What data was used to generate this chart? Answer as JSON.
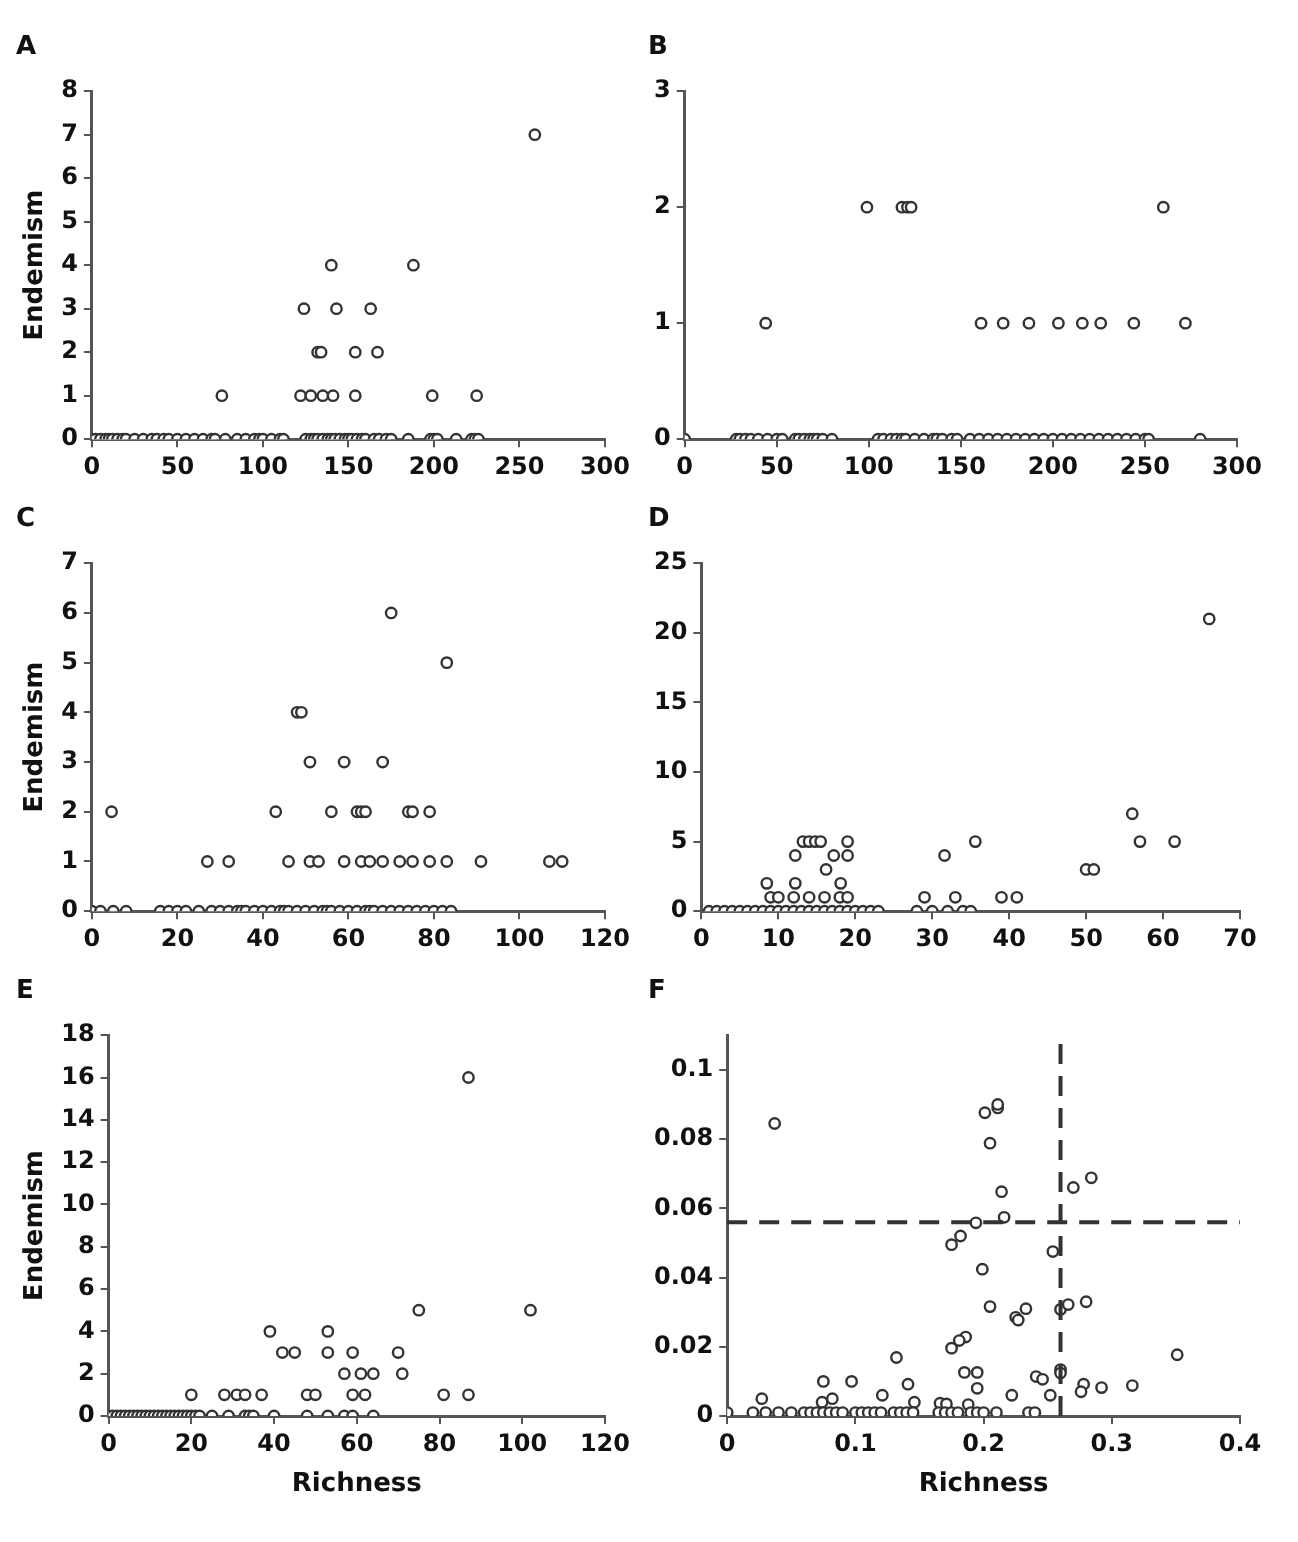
{
  "chart_data": [
    {
      "type": "scatter",
      "title": "A",
      "ylabel": "Endemism",
      "color": "#333333",
      "marker": "circle",
      "xlim": [
        0,
        300
      ],
      "xticks": [
        0,
        50,
        100,
        150,
        200,
        250,
        300
      ],
      "ylim": [
        0,
        8
      ],
      "yticks": [
        0,
        1,
        2,
        3,
        4,
        5,
        6,
        7,
        8
      ],
      "x": [
        76,
        122,
        128,
        135,
        141,
        154,
        199,
        225,
        132,
        134,
        154,
        167,
        124,
        143,
        163,
        140,
        188,
        259,
        0,
        2,
        5,
        8,
        10,
        12,
        15,
        18,
        20,
        25,
        30,
        35,
        38,
        42,
        45,
        50,
        55,
        60,
        65,
        70,
        72,
        78,
        85,
        90,
        95,
        98,
        100,
        105,
        110,
        112,
        125,
        128,
        130,
        132,
        135,
        138,
        140,
        142,
        145,
        148,
        150,
        152,
        155,
        158,
        160,
        165,
        168,
        172,
        175,
        185,
        198,
        200,
        202,
        213,
        222,
        224,
        226
      ],
      "values": [
        1,
        1,
        1,
        1,
        1,
        1,
        1,
        1,
        2,
        2,
        2,
        2,
        3,
        3,
        3,
        4,
        4,
        7,
        0,
        0,
        0,
        0,
        0,
        0,
        0,
        0,
        0,
        0,
        0,
        0,
        0,
        0,
        0,
        0,
        0,
        0,
        0,
        0,
        0,
        0,
        0,
        0,
        0,
        0,
        0,
        0,
        0,
        0,
        0,
        0,
        0,
        0,
        0,
        0,
        0,
        0,
        0,
        0,
        0,
        0,
        0,
        0,
        0,
        0,
        0,
        0,
        0,
        0,
        0,
        0,
        0,
        0,
        0,
        0,
        0
      ]
    },
    {
      "type": "scatter",
      "title": "B",
      "color": "#333333",
      "marker": "circle",
      "xlim": [
        0,
        300
      ],
      "xticks": [
        0,
        50,
        100,
        150,
        200,
        250,
        300
      ],
      "ylim": [
        0,
        3
      ],
      "yticks": [
        0,
        1,
        2,
        3
      ],
      "x": [
        44,
        161,
        173,
        187,
        203,
        216,
        226,
        244,
        272,
        99,
        118,
        121,
        123,
        260,
        0,
        28,
        30,
        33,
        36,
        40,
        45,
        50,
        53,
        60,
        62,
        65,
        68,
        70,
        72,
        75,
        80,
        105,
        108,
        112,
        115,
        118,
        120,
        125,
        130,
        135,
        137,
        140,
        145,
        148,
        155,
        160,
        165,
        170,
        175,
        180,
        185,
        190,
        195,
        200,
        205,
        210,
        215,
        220,
        225,
        230,
        235,
        240,
        245,
        250,
        252,
        280
      ],
      "values": [
        1,
        1,
        1,
        1,
        1,
        1,
        1,
        1,
        1,
        2,
        2,
        2,
        2,
        2,
        0,
        0,
        0,
        0,
        0,
        0,
        0,
        0,
        0,
        0,
        0,
        0,
        0,
        0,
        0,
        0,
        0,
        0,
        0,
        0,
        0,
        0,
        0,
        0,
        0,
        0,
        0,
        0,
        0,
        0,
        0,
        0,
        0,
        0,
        0,
        0,
        0,
        0,
        0,
        0,
        0,
        0,
        0,
        0,
        0,
        0,
        0,
        0,
        0,
        0,
        0,
        0
      ]
    },
    {
      "type": "scatter",
      "title": "C",
      "ylabel": "Endemism",
      "color": "#333333",
      "marker": "circle",
      "xlim": [
        0,
        120
      ],
      "xticks": [
        0,
        20,
        40,
        60,
        80,
        100,
        120
      ],
      "ylim": [
        0,
        7
      ],
      "yticks": [
        0,
        1,
        2,
        3,
        4,
        5,
        6,
        7
      ],
      "x": [
        4.6,
        43,
        56,
        62,
        63,
        64,
        74,
        75,
        79,
        51,
        59,
        68,
        48,
        49,
        83,
        70,
        27,
        32,
        46,
        51,
        53,
        59,
        63,
        65,
        68,
        72,
        75,
        79,
        83,
        91,
        107,
        110,
        0,
        2,
        5,
        8,
        16,
        18,
        20,
        22,
        25,
        28,
        30,
        32,
        34,
        35,
        36,
        38,
        40,
        42,
        44,
        45,
        46,
        48,
        50,
        52,
        54,
        55,
        56,
        58,
        60,
        62,
        64,
        65,
        66,
        68,
        70,
        72,
        74,
        76,
        78,
        80,
        82,
        84
      ],
      "values": [
        2,
        2,
        2,
        2,
        2,
        2,
        2,
        2,
        2,
        3,
        3,
        3,
        4,
        4,
        5,
        6,
        1,
        1,
        1,
        1,
        1,
        1,
        1,
        1,
        1,
        1,
        1,
        1,
        1,
        1,
        1,
        1,
        0,
        0,
        0,
        0,
        0,
        0,
        0,
        0,
        0,
        0,
        0,
        0,
        0,
        0,
        0,
        0,
        0,
        0,
        0,
        0,
        0,
        0,
        0,
        0,
        0,
        0,
        0,
        0,
        0,
        0,
        0,
        0,
        0,
        0,
        0,
        0,
        0,
        0,
        0,
        0,
        0,
        0
      ]
    },
    {
      "type": "scatter",
      "title": "D",
      "color": "#333333",
      "marker": "circle",
      "xlim": [
        0,
        70
      ],
      "xticks": [
        0,
        10,
        20,
        30,
        40,
        50,
        60,
        70
      ],
      "ylim": [
        0,
        25
      ],
      "yticks": [
        0,
        5,
        10,
        15,
        20,
        25
      ],
      "x": [
        66,
        56,
        57,
        61.5,
        35.6,
        13.2,
        14,
        14.8,
        15.5,
        19,
        12.2,
        17.2,
        19,
        31.6,
        16.2,
        50,
        51,
        8.5,
        12.2,
        18.1,
        9,
        10,
        12,
        14,
        16,
        18,
        19,
        29,
        33,
        39,
        41,
        1,
        2,
        3,
        4,
        5,
        6,
        7,
        8,
        9,
        10,
        11,
        12,
        13,
        14,
        15,
        16,
        17,
        18,
        19,
        20,
        21,
        22,
        23,
        28,
        30,
        32,
        34,
        35
      ],
      "values": [
        21,
        7,
        5,
        5,
        5,
        5,
        5,
        5,
        5,
        5,
        4,
        4,
        4,
        4,
        3,
        3,
        3,
        2,
        2,
        2,
        1,
        1,
        1,
        1,
        1,
        1,
        1,
        1,
        1,
        1,
        1,
        0,
        0,
        0,
        0,
        0,
        0,
        0,
        0,
        0,
        0,
        0,
        0,
        0,
        0,
        0,
        0,
        0,
        0,
        0,
        0,
        0,
        0,
        0,
        0,
        0,
        0,
        0,
        0
      ]
    },
    {
      "type": "scatter",
      "title": "E",
      "xlabel": "Richness",
      "ylabel": "Endemism",
      "color": "#333333",
      "marker": "circle",
      "xlim": [
        0,
        120
      ],
      "xticks": [
        0,
        20,
        40,
        60,
        80,
        100,
        120
      ],
      "ylim": [
        0,
        18
      ],
      "yticks": [
        0,
        2,
        4,
        6,
        8,
        10,
        12,
        14,
        16,
        18
      ],
      "x": [
        87,
        75,
        102,
        39,
        53,
        42,
        45,
        53,
        59,
        70,
        57,
        61,
        64,
        71,
        20,
        28,
        31,
        33,
        37,
        48,
        50,
        59,
        62,
        81,
        87,
        0,
        1,
        2,
        3,
        4,
        5,
        6,
        7,
        8,
        9,
        10,
        11,
        12,
        13,
        14,
        15,
        16,
        17,
        18,
        19,
        20,
        21,
        22,
        25,
        29,
        33,
        34,
        35,
        40,
        48,
        53,
        57,
        59,
        64
      ],
      "values": [
        16,
        5,
        5,
        4,
        4,
        3,
        3,
        3,
        3,
        3,
        2,
        2,
        2,
        2,
        1,
        1,
        1,
        1,
        1,
        1,
        1,
        1,
        1,
        1,
        1,
        0,
        0,
        0,
        0,
        0,
        0,
        0,
        0,
        0,
        0,
        0,
        0,
        0,
        0,
        0,
        0,
        0,
        0,
        0,
        0,
        0,
        0,
        0,
        0,
        0,
        0,
        0,
        0,
        0,
        0,
        0,
        0,
        0,
        0
      ]
    },
    {
      "type": "scatter",
      "title": "F",
      "xlabel": "Richness",
      "color": "#333333",
      "marker": "circle",
      "xlim": [
        0,
        0.4
      ],
      "xticks": [
        0,
        0.1,
        0.2,
        0.3,
        0.4
      ],
      "ylim": [
        0,
        0.11
      ],
      "yticks": [
        0,
        0.02,
        0.04,
        0.06,
        0.08,
        0.1
      ],
      "ref_lines": [
        {
          "axis": "x",
          "value": 0.26,
          "line_style": "dashed",
          "color": "#333333"
        },
        {
          "axis": "y",
          "value": 0.056,
          "line_style": "dashed",
          "color": "#333333"
        }
      ],
      "x": [
        0.037,
        0.201,
        0.211,
        0.211,
        0.205,
        0.214,
        0.27,
        0.284,
        0.216,
        0.194,
        0.175,
        0.182,
        0.254,
        0.199,
        0.205,
        0.233,
        0.225,
        0.227,
        0.26,
        0.266,
        0.28,
        0.186,
        0.181,
        0.175,
        0.132,
        0.351,
        0.185,
        0.195,
        0.26,
        0.26,
        0.241,
        0.246,
        0.075,
        0.097,
        0.141,
        0.195,
        0.278,
        0.292,
        0.316,
        0.276,
        0.121,
        0.222,
        0.252,
        0.027,
        0.082,
        0.074,
        0.146,
        0.166,
        0.171,
        0.188,
        0,
        0.02,
        0.03,
        0.04,
        0.05,
        0.06,
        0.065,
        0.07,
        0.075,
        0.08,
        0.085,
        0.09,
        0.1,
        0.105,
        0.11,
        0.115,
        0.12,
        0.13,
        0.135,
        0.14,
        0.145,
        0.165,
        0.17,
        0.175,
        0.18,
        0.19,
        0.195,
        0.2,
        0.21,
        0.235,
        0.24
      ],
      "values": [
        0.0845,
        0.0876,
        0.089,
        0.09,
        0.0788,
        0.0648,
        0.066,
        0.0688,
        0.0574,
        0.0558,
        0.0495,
        0.052,
        0.0475,
        0.0424,
        0.0316,
        0.031,
        0.0285,
        0.0277,
        0.0308,
        0.0322,
        0.033,
        0.0228,
        0.0218,
        0.0196,
        0.0169,
        0.0177,
        0.0126,
        0.0126,
        0.0134,
        0.0124,
        0.0114,
        0.0106,
        0.01,
        0.01,
        0.0092,
        0.008,
        0.0092,
        0.0082,
        0.0088,
        0.007,
        0.006,
        0.006,
        0.006,
        0.005,
        0.005,
        0.004,
        0.004,
        0.0037,
        0.0035,
        0.0033,
        0.001,
        0.001,
        0.001,
        0.001,
        0.001,
        0.001,
        0.001,
        0.001,
        0.001,
        0.001,
        0.001,
        0.001,
        0.001,
        0.001,
        0.001,
        0.001,
        0.001,
        0.001,
        0.001,
        0.001,
        0.001,
        0.001,
        0.001,
        0.001,
        0.001,
        0.001,
        0.001,
        0.001,
        0.001,
        0.001,
        0.001
      ]
    }
  ]
}
